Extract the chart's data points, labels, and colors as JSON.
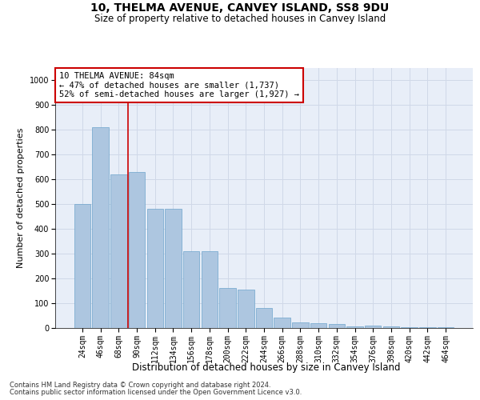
{
  "title": "10, THELMA AVENUE, CANVEY ISLAND, SS8 9DU",
  "subtitle": "Size of property relative to detached houses in Canvey Island",
  "xlabel": "Distribution of detached houses by size in Canvey Island",
  "ylabel": "Number of detached properties",
  "categories": [
    "24sqm",
    "46sqm",
    "68sqm",
    "90sqm",
    "112sqm",
    "134sqm",
    "156sqm",
    "178sqm",
    "200sqm",
    "222sqm",
    "244sqm",
    "266sqm",
    "288sqm",
    "310sqm",
    "332sqm",
    "354sqm",
    "376sqm",
    "398sqm",
    "420sqm",
    "442sqm",
    "464sqm"
  ],
  "values": [
    500,
    810,
    620,
    630,
    480,
    480,
    310,
    310,
    160,
    155,
    80,
    43,
    22,
    18,
    16,
    7,
    10,
    7,
    3,
    3,
    3
  ],
  "bar_color": "#adc6e0",
  "bar_edge_color": "#6ea4cc",
  "marker_line_color": "#cc0000",
  "annotation_text": "10 THELMA AVENUE: 84sqm\n← 47% of detached houses are smaller (1,737)\n52% of semi-detached houses are larger (1,927) →",
  "annotation_box_color": "#ffffff",
  "annotation_box_edge_color": "#cc0000",
  "ylim": [
    0,
    1050
  ],
  "yticks": [
    0,
    100,
    200,
    300,
    400,
    500,
    600,
    700,
    800,
    900,
    1000
  ],
  "grid_color": "#d0d8e8",
  "bg_color": "#e8eef8",
  "footer1": "Contains HM Land Registry data © Crown copyright and database right 2024.",
  "footer2": "Contains public sector information licensed under the Open Government Licence v3.0.",
  "title_fontsize": 10,
  "subtitle_fontsize": 8.5,
  "axis_label_fontsize": 8,
  "tick_fontsize": 7,
  "annotation_fontsize": 7.5,
  "footer_fontsize": 6
}
